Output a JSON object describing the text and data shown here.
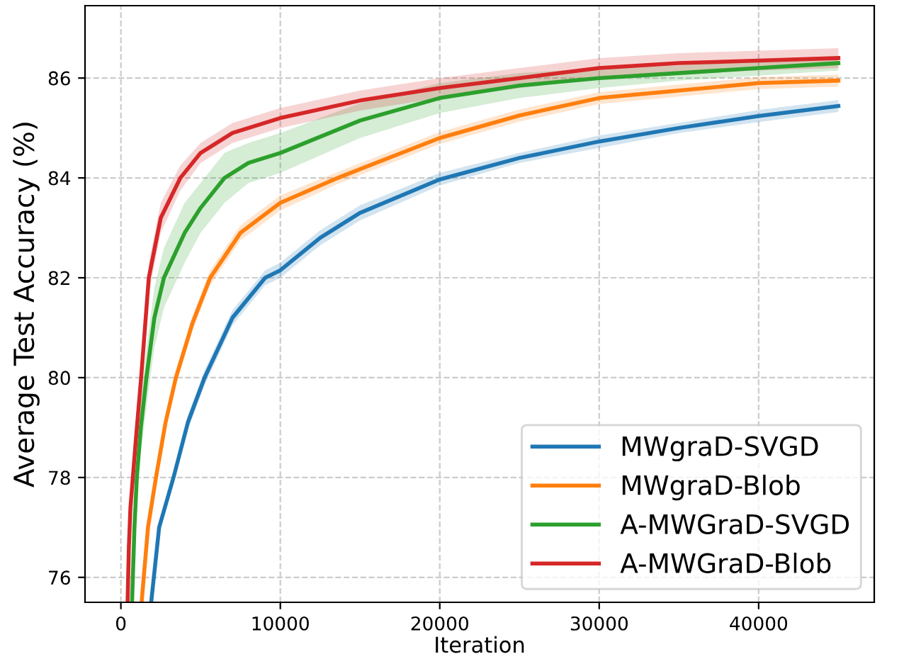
{
  "chart_data": {
    "type": "line",
    "xlabel": "Iteration",
    "ylabel": "Average Test Accuracy (%)",
    "xlim": [
      -2250,
      47250
    ],
    "ylim": [
      75.5,
      87.45
    ],
    "xticks": [
      0,
      10000,
      20000,
      30000,
      40000
    ],
    "yticks": [
      76,
      78,
      80,
      82,
      84,
      86
    ],
    "grid": true,
    "legend": "bottom right",
    "line_style": "solid",
    "series": [
      {
        "name": "MWgraD-SVGD",
        "color": "#1f77b4",
        "x": [
          1900,
          2400,
          3300,
          4200,
          5250,
          7000,
          9050,
          10000,
          12500,
          15000,
          20000,
          25000,
          30000,
          35000,
          40000,
          45000
        ],
        "values": [
          75.5,
          77,
          78,
          79.1,
          80,
          81.2,
          82,
          82.15,
          82.8,
          83.3,
          83.97,
          84.4,
          84.73,
          85.0,
          85.24,
          85.44
        ],
        "lower": [
          75.5,
          76.9,
          77.9,
          78.95,
          79.85,
          81.05,
          81.85,
          82.0,
          82.65,
          83.15,
          83.85,
          84.3,
          84.6,
          84.9,
          85.12,
          85.32
        ],
        "upper": [
          75.5,
          77.1,
          78.1,
          79.25,
          80.15,
          81.35,
          82.15,
          82.3,
          82.95,
          83.45,
          84.1,
          84.5,
          84.85,
          85.1,
          85.36,
          85.56
        ]
      },
      {
        "name": "MWgraD-Blob",
        "color": "#ff7f0e",
        "x": [
          1300,
          1700,
          2200,
          2800,
          3450,
          4500,
          5600,
          7500,
          10000,
          13600,
          20000,
          25000,
          30000,
          35000,
          40000,
          45000
        ],
        "values": [
          75.5,
          77,
          78,
          79.1,
          80,
          81.1,
          82,
          82.9,
          83.5,
          84,
          84.8,
          85.25,
          85.6,
          85.75,
          85.9,
          85.95
        ],
        "lower": [
          75.5,
          76.9,
          77.9,
          78.95,
          79.85,
          80.95,
          81.85,
          82.75,
          83.35,
          83.88,
          84.68,
          85.13,
          85.48,
          85.63,
          85.78,
          85.83
        ],
        "upper": [
          75.5,
          77.1,
          78.1,
          79.25,
          80.15,
          81.25,
          82.15,
          83.05,
          83.65,
          84.12,
          84.92,
          85.37,
          85.72,
          85.87,
          86.02,
          86.07
        ]
      },
      {
        "name": "A-MWGraD-SVGD",
        "color": "#2ca02c",
        "x": [
          700,
          850,
          1000,
          1250,
          1600,
          2100,
          2700,
          4000,
          5000,
          6500,
          8000,
          10000,
          15000,
          20000,
          25000,
          30000,
          35000,
          40000,
          45000
        ],
        "values": [
          75.5,
          77,
          78,
          79,
          80,
          81.2,
          82,
          82.9,
          83.4,
          84,
          84.3,
          84.5,
          85.15,
          85.6,
          85.85,
          86.0,
          86.1,
          86.2,
          86.3
        ],
        "lower": [
          75.5,
          76.7,
          77.6,
          78.5,
          79.4,
          80.6,
          81.4,
          82.3,
          82.9,
          83.5,
          83.9,
          84.1,
          84.8,
          85.3,
          85.6,
          85.8,
          85.95,
          86.05,
          86.15
        ],
        "upper": [
          75.5,
          77.3,
          78.4,
          79.5,
          80.6,
          81.8,
          82.6,
          83.5,
          83.9,
          84.5,
          84.7,
          84.9,
          85.5,
          85.9,
          86.1,
          86.2,
          86.25,
          86.35,
          86.45
        ]
      },
      {
        "name": "A-MWGraD-Blob",
        "color": "#d62728",
        "x": [
          420,
          500,
          600,
          750,
          950,
          1270,
          1750,
          2500,
          3730,
          5000,
          7000,
          10000,
          15000,
          20000,
          25000,
          30000,
          35000,
          40000,
          45000
        ],
        "values": [
          75.5,
          76.6,
          77.4,
          78,
          78.8,
          80,
          82,
          83.2,
          84,
          84.5,
          84.9,
          85.2,
          85.55,
          85.8,
          86.0,
          86.2,
          86.3,
          86.35,
          86.4
        ],
        "lower": [
          75.5,
          76.45,
          77.25,
          77.8,
          78.6,
          79.75,
          81.7,
          82.9,
          83.75,
          84.3,
          84.7,
          85.0,
          85.35,
          85.6,
          85.8,
          86.0,
          86.1,
          86.15,
          86.2
        ],
        "upper": [
          75.5,
          76.75,
          77.55,
          78.2,
          79.0,
          80.25,
          82.3,
          83.5,
          84.25,
          84.7,
          85.1,
          85.4,
          85.75,
          86.0,
          86.2,
          86.4,
          86.5,
          86.55,
          86.6
        ]
      }
    ]
  }
}
